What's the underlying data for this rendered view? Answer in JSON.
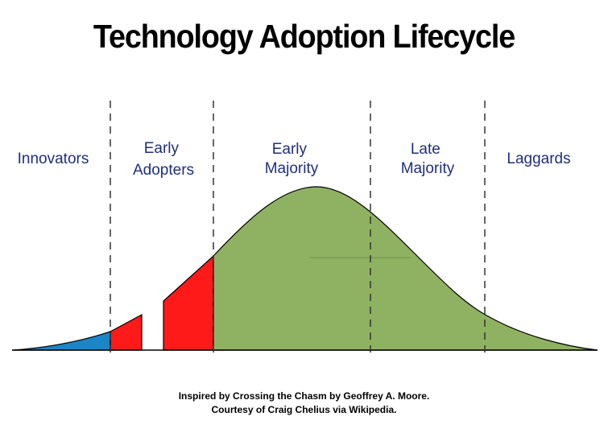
{
  "title": "Technology Adoption Lifecycle",
  "segments": [
    {
      "name": "Innovators",
      "lines": [
        "Innovators"
      ],
      "color": "#1a86c8"
    },
    {
      "name": "Early Adopters",
      "lines": [
        "Early",
        "Adopters"
      ],
      "color": "#ff1a1a"
    },
    {
      "name": "Early Majority",
      "lines": [
        "Early",
        "Majority"
      ],
      "color": "#8fb262"
    },
    {
      "name": "Late Majority",
      "lines": [
        "Late",
        "Majority"
      ],
      "color": "#8fb262"
    },
    {
      "name": "Laggards",
      "lines": [
        "Laggards"
      ],
      "color": "#8fb262"
    }
  ],
  "credits": {
    "line1": "Inspired by Crossing the Chasm by Geoffrey A. Moore.",
    "line2": "Courtesy of Craig Chelius via Wikipedia."
  }
}
